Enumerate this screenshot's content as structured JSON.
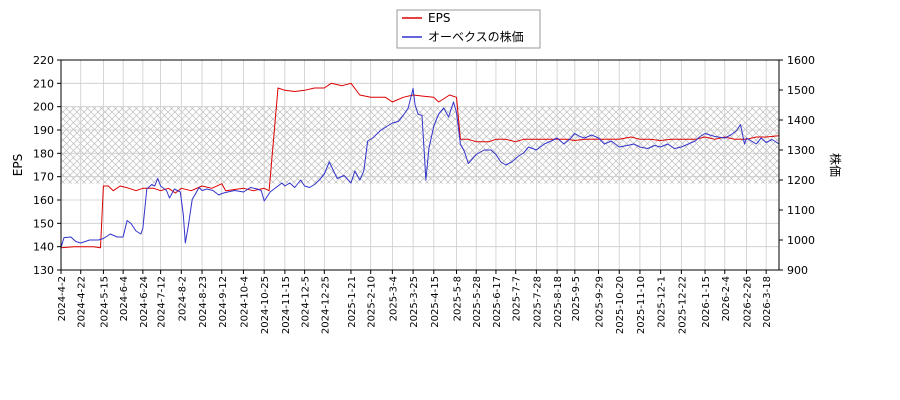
{
  "chart_data": {
    "type": "line",
    "x_axis": {
      "tick_labels": [
        "2024-4-2",
        "2024-4-22",
        "2024-5-15",
        "2024-6-4",
        "2024-6-24",
        "2024-7-12",
        "2024-8-2",
        "2024-8-23",
        "2024-9-12",
        "2024-10-4",
        "2024-10-25",
        "2024-11-15",
        "2024-12-5",
        "2024-12-25",
        "2025-1-21",
        "2025-2-10",
        "2025-3-4",
        "2025-3-25",
        "2025-4-15",
        "2025-5-8",
        "2025-5-28",
        "2025-6-17",
        "2025-7-7",
        "2025-7-28",
        "2025-8-18",
        "2025-9-5",
        "2025-9-29",
        "2025-10-20",
        "2025-11-10",
        "2025-12-1",
        "2025-12-22",
        "2026-1-15",
        "2026-2-4",
        "2026-2-26",
        "2026-3-18"
      ],
      "range": [
        "2024-4-2",
        "2026-3-31"
      ],
      "grid": true
    },
    "y_left": {
      "label": "EPS",
      "range": [
        130,
        220
      ],
      "ticks": [
        130,
        140,
        150,
        160,
        170,
        180,
        190,
        200,
        210,
        220
      ]
    },
    "y_right": {
      "label": "株価",
      "range": [
        900,
        1600
      ],
      "ticks": [
        900,
        1000,
        1100,
        1200,
        1300,
        1400,
        1500,
        1600
      ]
    },
    "legend": {
      "position": "top-center",
      "entries": [
        {
          "name": "EPS",
          "color": "#dd0000"
        },
        {
          "name": "オーベクスの株価",
          "color": "#3333cc"
        }
      ]
    },
    "shaded_band": {
      "y_from": 167,
      "y_to": 200,
      "axis": "left",
      "pattern": "crosshatch"
    },
    "series": [
      {
        "name": "EPS",
        "axis": "left",
        "color": "#dd0000",
        "points": [
          [
            "2024-4-2",
            139.5
          ],
          [
            "2024-4-15",
            140
          ],
          [
            "2024-5-5",
            140
          ],
          [
            "2024-5-12",
            139.5
          ],
          [
            "2024-5-15",
            166
          ],
          [
            "2024-5-20",
            166
          ],
          [
            "2024-5-25",
            164
          ],
          [
            "2024-6-1",
            166
          ],
          [
            "2024-6-10",
            165
          ],
          [
            "2024-6-17",
            164
          ],
          [
            "2024-6-24",
            165
          ],
          [
            "2024-7-5",
            165
          ],
          [
            "2024-7-12",
            164
          ],
          [
            "2024-7-20",
            165
          ],
          [
            "2024-7-27",
            163
          ],
          [
            "2024-8-2",
            165
          ],
          [
            "2024-8-12",
            164
          ],
          [
            "2024-8-23",
            166
          ],
          [
            "2024-9-2",
            165
          ],
          [
            "2024-9-12",
            167
          ],
          [
            "2024-9-16",
            164
          ],
          [
            "2024-10-4",
            165
          ],
          [
            "2024-10-14",
            164
          ],
          [
            "2024-10-25",
            165
          ],
          [
            "2024-10-30",
            164
          ],
          [
            "2024-11-8",
            208
          ],
          [
            "2024-11-15",
            207
          ],
          [
            "2024-11-25",
            206.5
          ],
          [
            "2024-12-5",
            207
          ],
          [
            "2024-12-15",
            208
          ],
          [
            "2024-12-25",
            208
          ],
          [
            "2025-1-1",
            210
          ],
          [
            "2025-1-12",
            209
          ],
          [
            "2025-1-21",
            210
          ],
          [
            "2025-1-30",
            205
          ],
          [
            "2025-2-10",
            204
          ],
          [
            "2025-2-25",
            204
          ],
          [
            "2025-3-4",
            202
          ],
          [
            "2025-3-15",
            204
          ],
          [
            "2025-3-25",
            205
          ],
          [
            "2025-4-5",
            204.5
          ],
          [
            "2025-4-15",
            204
          ],
          [
            "2025-4-20",
            202
          ],
          [
            "2025-5-1",
            205
          ],
          [
            "2025-5-8",
            204
          ],
          [
            "2025-5-12",
            186
          ],
          [
            "2025-5-20",
            186
          ],
          [
            "2025-5-28",
            185
          ],
          [
            "2025-6-10",
            185
          ],
          [
            "2025-6-17",
            186
          ],
          [
            "2025-6-27",
            186
          ],
          [
            "2025-7-7",
            185
          ],
          [
            "2025-7-15",
            186
          ],
          [
            "2025-7-28",
            186
          ],
          [
            "2025-8-8",
            186
          ],
          [
            "2025-8-18",
            186
          ],
          [
            "2025-8-28",
            186
          ],
          [
            "2025-9-5",
            185.5
          ],
          [
            "2025-9-15",
            186
          ],
          [
            "2025-9-29",
            186
          ],
          [
            "2025-10-10",
            186
          ],
          [
            "2025-10-20",
            186
          ],
          [
            "2025-11-1",
            187
          ],
          [
            "2025-11-10",
            186
          ],
          [
            "2025-11-20",
            186
          ],
          [
            "2025-12-1",
            185.5
          ],
          [
            "2025-12-12",
            186
          ],
          [
            "2025-12-22",
            186
          ],
          [
            "2026-1-5",
            186
          ],
          [
            "2026-1-15",
            187
          ],
          [
            "2026-1-25",
            186
          ],
          [
            "2026-2-4",
            187
          ],
          [
            "2026-2-14",
            186
          ],
          [
            "2026-2-26",
            186
          ],
          [
            "2026-3-8",
            187
          ],
          [
            "2026-3-18",
            187
          ],
          [
            "2026-3-31",
            187.5
          ]
        ]
      },
      {
        "name": "オーベクスの株価",
        "axis": "right",
        "color": "#3333cc",
        "points": [
          [
            "2024-4-2",
            975
          ],
          [
            "2024-4-5",
            1008
          ],
          [
            "2024-4-12",
            1010
          ],
          [
            "2024-4-17",
            995
          ],
          [
            "2024-4-22",
            990
          ],
          [
            "2024-5-1",
            1000
          ],
          [
            "2024-5-10",
            1000
          ],
          [
            "2024-5-15",
            1005
          ],
          [
            "2024-5-22",
            1020
          ],
          [
            "2024-5-29",
            1010
          ],
          [
            "2024-6-4",
            1010
          ],
          [
            "2024-6-8",
            1065
          ],
          [
            "2024-6-12",
            1055
          ],
          [
            "2024-6-17",
            1030
          ],
          [
            "2024-6-22",
            1020
          ],
          [
            "2024-6-24",
            1040
          ],
          [
            "2024-6-28",
            1170
          ],
          [
            "2024-7-3",
            1185
          ],
          [
            "2024-7-6",
            1180
          ],
          [
            "2024-7-9",
            1205
          ],
          [
            "2024-7-12",
            1180
          ],
          [
            "2024-7-18",
            1165
          ],
          [
            "2024-7-21",
            1140
          ],
          [
            "2024-7-26",
            1170
          ],
          [
            "2024-8-1",
            1160
          ],
          [
            "2024-8-4",
            1085
          ],
          [
            "2024-8-6",
            990
          ],
          [
            "2024-8-9",
            1045
          ],
          [
            "2024-8-13",
            1135
          ],
          [
            "2024-8-20",
            1175
          ],
          [
            "2024-8-23",
            1165
          ],
          [
            "2024-8-28",
            1170
          ],
          [
            "2024-9-3",
            1165
          ],
          [
            "2024-9-9",
            1150
          ],
          [
            "2024-9-12",
            1155
          ],
          [
            "2024-9-18",
            1160
          ],
          [
            "2024-9-25",
            1165
          ],
          [
            "2024-10-4",
            1160
          ],
          [
            "2024-10-11",
            1175
          ],
          [
            "2024-10-18",
            1170
          ],
          [
            "2024-10-22",
            1165
          ],
          [
            "2024-10-25",
            1130
          ],
          [
            "2024-10-31",
            1160
          ],
          [
            "2024-11-6",
            1175
          ],
          [
            "2024-11-12",
            1190
          ],
          [
            "2024-11-15",
            1180
          ],
          [
            "2024-11-20",
            1190
          ],
          [
            "2024-11-25",
            1175
          ],
          [
            "2024-12-1",
            1200
          ],
          [
            "2024-12-5",
            1180
          ],
          [
            "2024-12-10",
            1175
          ],
          [
            "2024-12-15",
            1185
          ],
          [
            "2024-12-20",
            1200
          ],
          [
            "2024-12-25",
            1220
          ],
          [
            "2024-12-30",
            1260
          ],
          [
            "2025-1-7",
            1205
          ],
          [
            "2025-1-14",
            1215
          ],
          [
            "2025-1-21",
            1190
          ],
          [
            "2025-1-25",
            1230
          ],
          [
            "2025-1-30",
            1200
          ],
          [
            "2025-2-3",
            1230
          ],
          [
            "2025-2-7",
            1330
          ],
          [
            "2025-2-12",
            1340
          ],
          [
            "2025-2-20",
            1365
          ],
          [
            "2025-2-27",
            1380
          ],
          [
            "2025-3-4",
            1390
          ],
          [
            "2025-3-10",
            1395
          ],
          [
            "2025-3-15",
            1415
          ],
          [
            "2025-3-20",
            1440
          ],
          [
            "2025-3-25",
            1505
          ],
          [
            "2025-3-27",
            1450
          ],
          [
            "2025-3-30",
            1420
          ],
          [
            "2025-4-3",
            1415
          ],
          [
            "2025-4-7",
            1200
          ],
          [
            "2025-4-10",
            1305
          ],
          [
            "2025-4-15",
            1380
          ],
          [
            "2025-4-20",
            1420
          ],
          [
            "2025-4-25",
            1440
          ],
          [
            "2025-4-30",
            1410
          ],
          [
            "2025-5-5",
            1460
          ],
          [
            "2025-5-8",
            1425
          ],
          [
            "2025-5-12",
            1320
          ],
          [
            "2025-5-16",
            1295
          ],
          [
            "2025-5-20",
            1255
          ],
          [
            "2025-5-28",
            1285
          ],
          [
            "2025-6-5",
            1300
          ],
          [
            "2025-6-12",
            1300
          ],
          [
            "2025-6-17",
            1285
          ],
          [
            "2025-6-22",
            1260
          ],
          [
            "2025-6-27",
            1250
          ],
          [
            "2025-7-3",
            1260
          ],
          [
            "2025-7-10",
            1280
          ],
          [
            "2025-7-15",
            1290
          ],
          [
            "2025-7-20",
            1310
          ],
          [
            "2025-7-28",
            1300
          ],
          [
            "2025-8-5",
            1320
          ],
          [
            "2025-8-12",
            1330
          ],
          [
            "2025-8-18",
            1340
          ],
          [
            "2025-8-25",
            1320
          ],
          [
            "2025-9-1",
            1340
          ],
          [
            "2025-9-5",
            1355
          ],
          [
            "2025-9-10",
            1345
          ],
          [
            "2025-9-15",
            1340
          ],
          [
            "2025-9-22",
            1350
          ],
          [
            "2025-9-29",
            1340
          ],
          [
            "2025-10-5",
            1320
          ],
          [
            "2025-10-12",
            1330
          ],
          [
            "2025-10-20",
            1310
          ],
          [
            "2025-10-28",
            1315
          ],
          [
            "2025-11-4",
            1320
          ],
          [
            "2025-11-10",
            1310
          ],
          [
            "2025-11-18",
            1305
          ],
          [
            "2025-11-25",
            1315
          ],
          [
            "2025-12-1",
            1310
          ],
          [
            "2025-12-8",
            1320
          ],
          [
            "2025-12-15",
            1305
          ],
          [
            "2025-12-22",
            1310
          ],
          [
            "2025-12-29",
            1320
          ],
          [
            "2026-1-5",
            1330
          ],
          [
            "2026-1-10",
            1345
          ],
          [
            "2026-1-15",
            1355
          ],
          [
            "2026-1-20",
            1350
          ],
          [
            "2026-1-25",
            1345
          ],
          [
            "2026-2-4",
            1340
          ],
          [
            "2026-2-10",
            1350
          ],
          [
            "2026-2-16",
            1365
          ],
          [
            "2026-2-20",
            1385
          ],
          [
            "2026-2-24",
            1320
          ],
          [
            "2026-2-26",
            1340
          ],
          [
            "2026-3-3",
            1330
          ],
          [
            "2026-3-8",
            1320
          ],
          [
            "2026-3-13",
            1340
          ],
          [
            "2026-3-18",
            1325
          ],
          [
            "2026-3-24",
            1335
          ],
          [
            "2026-3-31",
            1320
          ]
        ]
      }
    ]
  }
}
